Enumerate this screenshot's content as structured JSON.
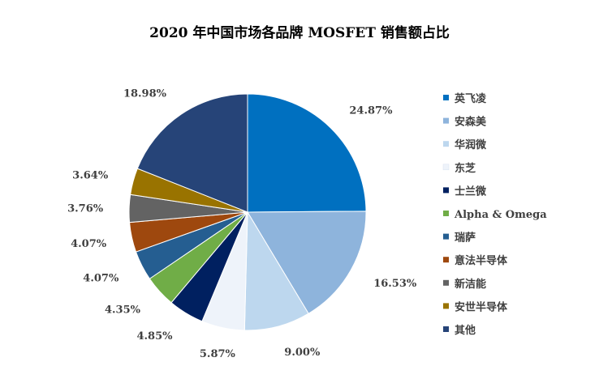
{
  "chart_data": {
    "type": "pie",
    "title": "2020 年中国市场各品牌 MOSFET 销售额占比",
    "slices": [
      {
        "label": "英飞凌",
        "value": 24.87,
        "display": "24.87%",
        "color": "#0070C0"
      },
      {
        "label": "安森美",
        "value": 16.53,
        "display": "16.53%",
        "color": "#8EB4DC"
      },
      {
        "label": "华润微",
        "value": 9.0,
        "display": "9.00%",
        "color": "#BDD7EE"
      },
      {
        "label": "东芝",
        "value": 5.87,
        "display": "5.87%",
        "color": "#EEF3FA"
      },
      {
        "label": "士兰微",
        "value": 4.85,
        "display": "4.85%",
        "color": "#002060"
      },
      {
        "label": "Alpha & Omega",
        "value": 4.35,
        "display": "4.35%",
        "color": "#70AD47"
      },
      {
        "label": "瑞萨",
        "value": 4.07,
        "display": "4.07%",
        "color": "#255E91"
      },
      {
        "label": "意法半导体",
        "value": 4.07,
        "display": "4.07%",
        "color": "#9E480E"
      },
      {
        "label": "新洁能",
        "value": 3.76,
        "display": "3.76%",
        "color": "#636363"
      },
      {
        "label": "安世半导体",
        "value": 3.64,
        "display": "3.64%",
        "color": "#997300"
      },
      {
        "label": "其他",
        "value": 18.98,
        "display": "18.98%",
        "color": "#264478"
      }
    ],
    "legend_position": "right"
  }
}
